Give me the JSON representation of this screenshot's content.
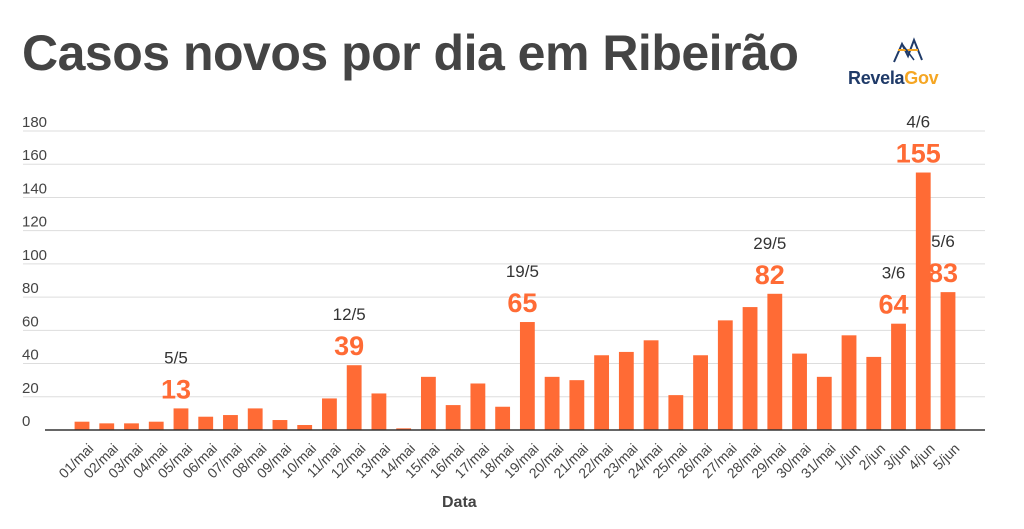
{
  "title": "Casos novos por dia em Ribeirão",
  "logo": {
    "part1": "Revela",
    "part2": "Gov",
    "icon": "revelagov-logo-icon"
  },
  "chart_data": {
    "type": "bar",
    "title": "Casos novos por dia em Ribeirão",
    "xlabel": "Data",
    "ylabel": "",
    "ylim": [
      0,
      180
    ],
    "yticks": [
      0,
      20,
      40,
      60,
      80,
      100,
      120,
      140,
      160,
      180
    ],
    "grid": true,
    "bar_color": "#ff6b35",
    "annotation_color": "#ff6b35",
    "categories": [
      "01/mai",
      "02/mai",
      "03/mai",
      "04/mai",
      "05/mai",
      "06/mai",
      "07/mai",
      "08/mai",
      "09/mai",
      "10/mai",
      "11/mai",
      "12/mai",
      "13/mai",
      "14/mai",
      "15/mai",
      "16/mai",
      "17/mai",
      "18/mai",
      "19/mai",
      "20/mai",
      "21/mai",
      "22/mai",
      "23/mai",
      "24/mai",
      "25/mai",
      "26/mai",
      "27/mai",
      "28/mai",
      "29/mai",
      "30/mai",
      "31/mai",
      "1/jun",
      "2/jun",
      "3/jun",
      "4/jun",
      "5/jun"
    ],
    "values": [
      5,
      4,
      4,
      5,
      13,
      8,
      9,
      13,
      6,
      3,
      19,
      39,
      22,
      1,
      32,
      15,
      28,
      14,
      65,
      32,
      30,
      45,
      47,
      54,
      21,
      45,
      66,
      74,
      82,
      46,
      32,
      57,
      44,
      64,
      155,
      83
    ],
    "annotations": [
      {
        "index": 4,
        "date": "5/5",
        "value": "13"
      },
      {
        "index": 11,
        "date": "12/5",
        "value": "39"
      },
      {
        "index": 18,
        "date": "19/5",
        "value": "65"
      },
      {
        "index": 28,
        "date": "29/5",
        "value": "82"
      },
      {
        "index": 33,
        "date": "3/6",
        "value": "64"
      },
      {
        "index": 34,
        "date": "4/6",
        "value": "155"
      },
      {
        "index": 35,
        "date": "5/6",
        "value": "83"
      }
    ]
  }
}
